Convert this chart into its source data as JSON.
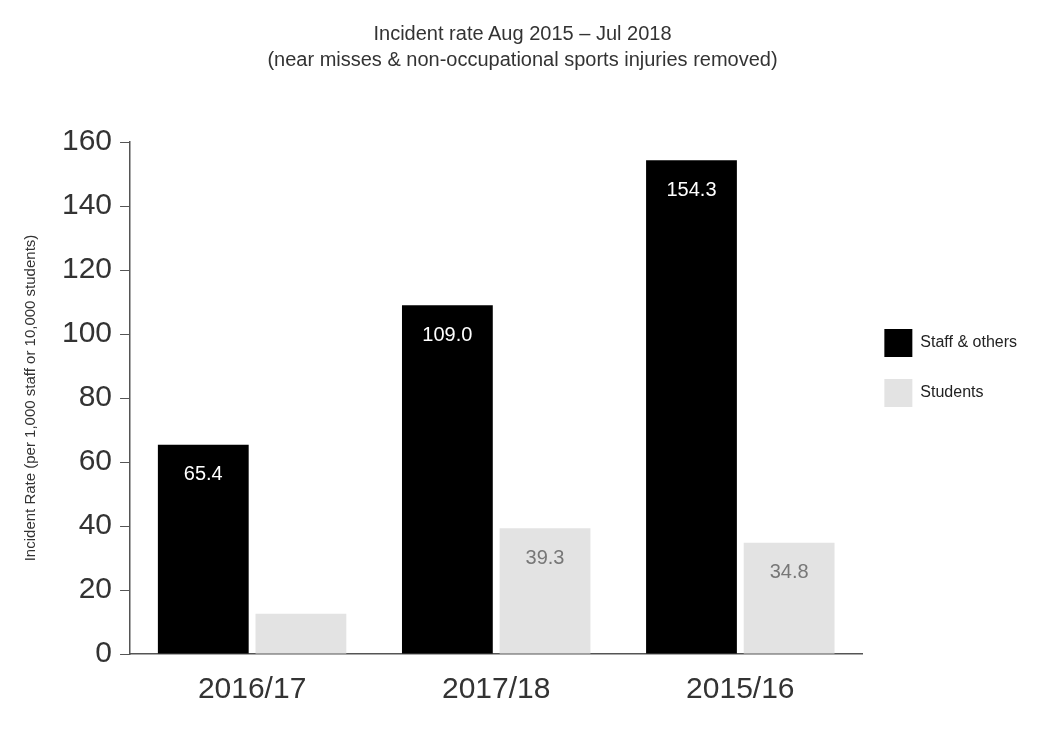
{
  "chart_data": {
    "type": "bar",
    "title": "Incident rate Aug 2015 – Jul 2018",
    "subtitle": "(near misses & non-occupational sports injuries removed)",
    "ylabel": "Incident Rate (per 1,000 staff or 10,000 students)",
    "categories": [
      "2016/17",
      "2017/18",
      "2015/16"
    ],
    "series": [
      {
        "name": "Staff & others",
        "color": "#000000",
        "values": [
          65.4,
          109.0,
          154.3
        ],
        "value_labels": [
          "65.4",
          "109.0",
          "154.3"
        ]
      },
      {
        "name": "Students",
        "color": "#e3e3e3",
        "values": [
          12.6,
          39.3,
          34.8
        ],
        "value_labels": [
          null,
          "39.3",
          "34.8"
        ]
      }
    ],
    "ylim": [
      0,
      160
    ],
    "yticks": [
      0,
      20,
      40,
      60,
      80,
      100,
      120,
      140,
      160
    ],
    "grid": false,
    "legend": "right"
  }
}
